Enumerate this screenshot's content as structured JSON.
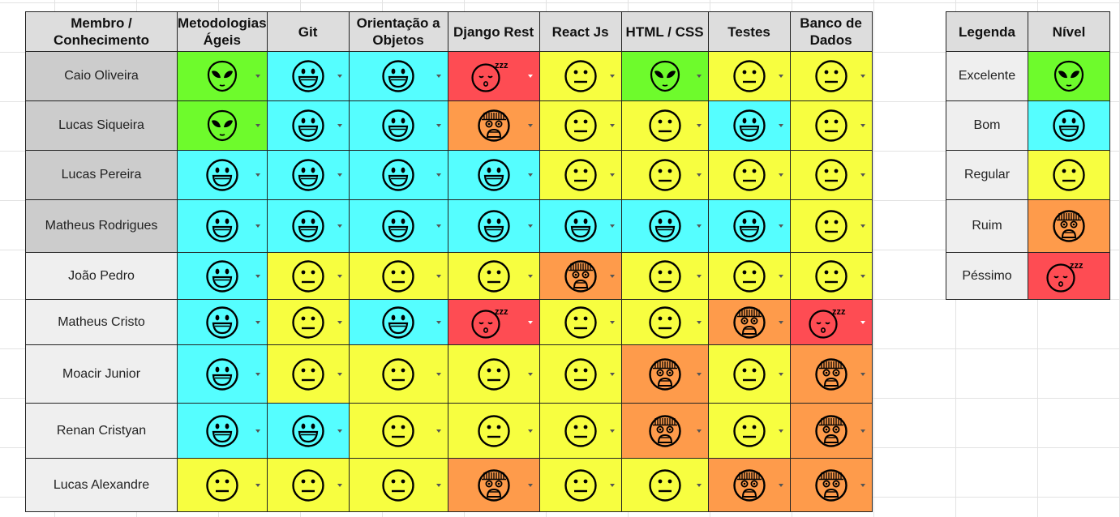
{
  "colors": {
    "excelente": "#6efb2c",
    "bom": "#55feff",
    "regular": "#f7fe40",
    "ruim": "#fe9b4b",
    "pessimo": "#fe4c53",
    "header": "#dddddd",
    "name_dark": "#cccccc",
    "name_light": "#efefef"
  },
  "level_icons": {
    "excelente": "alien-face-icon",
    "bom": "grinning-face-icon",
    "regular": "neutral-face-icon",
    "ruim": "frightened-face-icon",
    "pessimo": "sleeping-face-icon"
  },
  "main": {
    "header_member": "Membro / Conhecimento",
    "columns": [
      "Metodologias Ágeis",
      "Git",
      "Orientação a Objetos",
      "Django Rest",
      "React Js",
      "HTML / CSS",
      "Testes",
      "Banco de Dados"
    ],
    "rows": [
      {
        "name": "Caio Oliveira",
        "levels": [
          "excelente",
          "bom",
          "bom",
          "pessimo",
          "regular",
          "excelente",
          "regular",
          "regular"
        ]
      },
      {
        "name": "Lucas Siqueira",
        "levels": [
          "excelente",
          "bom",
          "bom",
          "ruim",
          "regular",
          "regular",
          "bom",
          "regular"
        ]
      },
      {
        "name": "Lucas Pereira",
        "levels": [
          "bom",
          "bom",
          "bom",
          "bom",
          "regular",
          "regular",
          "regular",
          "regular"
        ]
      },
      {
        "name": "Matheus Rodrigues",
        "levels": [
          "bom",
          "bom",
          "bom",
          "bom",
          "bom",
          "bom",
          "bom",
          "regular"
        ]
      },
      {
        "name": "João Pedro",
        "levels": [
          "bom",
          "regular",
          "regular",
          "regular",
          "ruim",
          "regular",
          "regular",
          "regular"
        ]
      },
      {
        "name": "Matheus Cristo",
        "levels": [
          "bom",
          "regular",
          "bom",
          "pessimo",
          "regular",
          "regular",
          "ruim",
          "pessimo"
        ]
      },
      {
        "name": "Moacir Junior",
        "levels": [
          "bom",
          "regular",
          "regular",
          "regular",
          "regular",
          "ruim",
          "regular",
          "ruim"
        ]
      },
      {
        "name": "Renan Cristyan",
        "levels": [
          "bom",
          "bom",
          "regular",
          "regular",
          "regular",
          "ruim",
          "regular",
          "ruim"
        ]
      },
      {
        "name": "Lucas Alexandre",
        "levels": [
          "regular",
          "regular",
          "regular",
          "ruim",
          "regular",
          "regular",
          "ruim",
          "ruim"
        ]
      }
    ]
  },
  "legend": {
    "header_legend": "Legenda",
    "header_level": "Nível",
    "items": [
      {
        "label": "Excelente",
        "level": "excelente"
      },
      {
        "label": "Bom",
        "level": "bom"
      },
      {
        "label": "Regular",
        "level": "regular"
      },
      {
        "label": "Ruim",
        "level": "ruim"
      },
      {
        "label": "Péssimo",
        "level": "pessimo"
      }
    ]
  }
}
